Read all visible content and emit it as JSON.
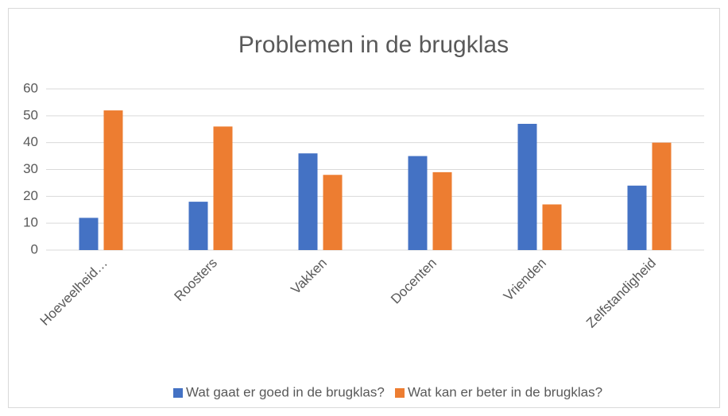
{
  "chart_data": {
    "type": "bar",
    "title": "Problemen in de brugklas",
    "categories": [
      "Hoeveelheid…",
      "Roosters",
      "Vakken",
      "Docenten",
      "Vrienden",
      "Zelfstandigheid"
    ],
    "series": [
      {
        "name": "Wat gaat er goed in de brugklas?",
        "color": "#4472c4",
        "values": [
          12,
          18,
          36,
          35,
          47,
          24
        ]
      },
      {
        "name": "Wat kan er beter in de brugklas?",
        "color": "#ed7d31",
        "values": [
          52,
          46,
          28,
          29,
          17,
          40
        ]
      }
    ],
    "ylim": [
      0,
      60
    ],
    "yticks": [
      0,
      10,
      20,
      30,
      40,
      50,
      60
    ],
    "grid": true,
    "legend": "bottom"
  }
}
